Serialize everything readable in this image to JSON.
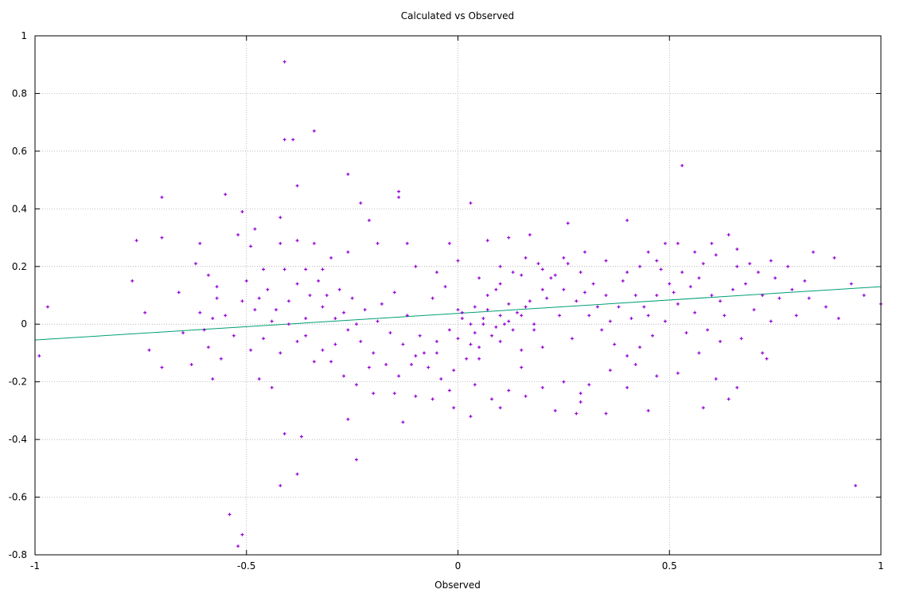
{
  "chart_data": {
    "type": "scatter",
    "title": "Calculated vs Observed",
    "xlabel": "Observed",
    "ylabel": "",
    "xlim": [
      -1,
      1
    ],
    "ylim": [
      -0.8,
      1
    ],
    "x_ticks": [
      -1,
      -0.5,
      0,
      0.5,
      1
    ],
    "x_tick_labels": [
      "-1",
      "-0.5",
      "0",
      "0.5",
      "1"
    ],
    "y_ticks": [
      -0.8,
      -0.6,
      -0.4,
      -0.2,
      0,
      0.2,
      0.4,
      0.6,
      0.8,
      1
    ],
    "y_tick_labels": [
      "-0.8",
      "-0.6",
      "-0.4",
      "-0.2",
      "0",
      "0.2",
      "0.4",
      "0.6",
      "0.8",
      "1"
    ],
    "grid": true,
    "legend": "none",
    "colors": {
      "points": "#9400d3",
      "fit_line": "#009e73"
    },
    "series": [
      {
        "kind": "scatter",
        "points": [
          [
            -0.99,
            -0.11
          ],
          [
            -0.97,
            0.06
          ],
          [
            -0.76,
            0.29
          ],
          [
            -0.77,
            0.15
          ],
          [
            -0.7,
            0.44
          ],
          [
            -0.7,
            0.3
          ],
          [
            -0.74,
            0.04
          ],
          [
            -0.73,
            -0.09
          ],
          [
            -0.7,
            -0.15
          ],
          [
            -0.66,
            0.11
          ],
          [
            -0.62,
            0.21
          ],
          [
            -0.61,
            0.28
          ],
          [
            -0.59,
            0.17
          ],
          [
            -0.57,
            0.13
          ],
          [
            -0.58,
            0.02
          ],
          [
            -0.6,
            -0.02
          ],
          [
            -0.58,
            -0.19
          ],
          [
            -0.55,
            0.45
          ],
          [
            -0.52,
            0.31
          ],
          [
            -0.51,
            0.39
          ],
          [
            -0.49,
            0.27
          ],
          [
            -0.48,
            0.33
          ],
          [
            -0.46,
            0.19
          ],
          [
            -0.47,
            0.09
          ],
          [
            -0.49,
            -0.09
          ],
          [
            -0.47,
            -0.19
          ],
          [
            -0.44,
            -0.22
          ],
          [
            -0.41,
            0.91
          ],
          [
            -0.41,
            0.64
          ],
          [
            -0.39,
            0.64
          ],
          [
            -0.38,
            0.48
          ],
          [
            -0.34,
            0.67
          ],
          [
            -0.26,
            0.52
          ],
          [
            -0.23,
            0.42
          ],
          [
            -0.21,
            0.36
          ],
          [
            -0.14,
            0.46
          ],
          [
            -0.14,
            0.44
          ],
          [
            -0.42,
            0.37
          ],
          [
            -0.42,
            0.28
          ],
          [
            -0.38,
            0.29
          ],
          [
            -0.34,
            0.28
          ],
          [
            0.03,
            0.42
          ],
          [
            0.53,
            0.55
          ],
          [
            -0.41,
            -0.38
          ],
          [
            -0.37,
            -0.39
          ],
          [
            -0.42,
            -0.56
          ],
          [
            -0.38,
            -0.52
          ],
          [
            -0.24,
            -0.47
          ],
          [
            -0.54,
            -0.66
          ],
          [
            -0.52,
            -0.77
          ],
          [
            -0.51,
            -0.73
          ],
          [
            0.94,
            -0.56
          ],
          [
            -0.26,
            -0.33
          ],
          [
            -0.13,
            -0.34
          ],
          [
            -0.01,
            -0.29
          ],
          [
            0.03,
            -0.32
          ],
          [
            0.1,
            -0.29
          ],
          [
            0.23,
            -0.3
          ],
          [
            0.28,
            -0.31
          ],
          [
            0.29,
            -0.27
          ],
          [
            0.35,
            -0.31
          ],
          [
            0.29,
            -0.24
          ],
          [
            0.4,
            -0.22
          ],
          [
            0.45,
            -0.3
          ],
          [
            0.58,
            -0.29
          ],
          [
            0.66,
            -0.22
          ],
          [
            0.64,
            -0.26
          ],
          [
            0.61,
            -0.19
          ],
          [
            0.72,
            -0.1
          ],
          [
            0.73,
            -0.12
          ],
          [
            0.84,
            0.25
          ],
          [
            0.89,
            0.23
          ],
          [
            0.93,
            0.14
          ],
          [
            0.96,
            0.1
          ],
          [
            1.0,
            0.07
          ],
          [
            0.9,
            0.02
          ],
          [
            0.82,
            0.15
          ],
          [
            0.78,
            0.2
          ],
          [
            0.76,
            0.09
          ],
          [
            0.74,
            0.01
          ],
          [
            0.64,
            0.31
          ],
          [
            0.6,
            0.28
          ],
          [
            0.56,
            0.25
          ],
          [
            0.52,
            0.28
          ],
          [
            0.49,
            0.28
          ],
          [
            0.47,
            0.22
          ],
          [
            0.43,
            0.2
          ],
          [
            0.4,
            0.36
          ],
          [
            0.26,
            0.35
          ],
          [
            0.17,
            0.31
          ],
          [
            0.12,
            0.3
          ],
          [
            0.07,
            0.29
          ],
          [
            -0.02,
            0.28
          ],
          [
            -0.12,
            0.28
          ],
          [
            -0.19,
            0.28
          ],
          [
            -0.26,
            0.25
          ],
          [
            -0.3,
            0.23
          ],
          [
            -0.32,
            0.19
          ],
          [
            -0.36,
            0.19
          ],
          [
            -0.41,
            0.19
          ],
          [
            -0.45,
            0.12
          ],
          [
            -0.43,
            0.05
          ],
          [
            -0.4,
            0.0
          ],
          [
            -0.36,
            -0.04
          ],
          [
            -0.32,
            -0.09
          ],
          [
            -0.3,
            -0.13
          ],
          [
            -0.27,
            -0.18
          ],
          [
            -0.24,
            -0.21
          ],
          [
            -0.2,
            -0.24
          ],
          [
            -0.15,
            -0.24
          ],
          [
            -0.1,
            -0.25
          ],
          [
            -0.06,
            -0.26
          ],
          [
            -0.02,
            -0.23
          ],
          [
            0.04,
            -0.21
          ],
          [
            0.08,
            -0.26
          ],
          [
            0.12,
            -0.23
          ],
          [
            0.16,
            -0.25
          ],
          [
            0.2,
            -0.22
          ],
          [
            0.25,
            -0.2
          ],
          [
            0.31,
            -0.21
          ],
          [
            0.36,
            -0.16
          ],
          [
            0.42,
            -0.14
          ],
          [
            0.47,
            -0.18
          ],
          [
            0.52,
            -0.17
          ],
          [
            0.57,
            -0.1
          ],
          [
            0.62,
            -0.06
          ],
          [
            0.67,
            -0.05
          ],
          [
            0.7,
            0.05
          ],
          [
            0.68,
            0.14
          ],
          [
            0.66,
            0.2
          ],
          [
            0.61,
            0.24
          ],
          [
            0.58,
            0.21
          ],
          [
            0.55,
            0.13
          ],
          [
            0.52,
            0.07
          ],
          [
            0.49,
            0.01
          ],
          [
            0.46,
            -0.04
          ],
          [
            0.43,
            -0.08
          ],
          [
            0.4,
            -0.11
          ],
          [
            0.37,
            -0.07
          ],
          [
            0.34,
            -0.02
          ],
          [
            0.31,
            0.03
          ],
          [
            0.28,
            0.08
          ],
          [
            0.25,
            0.12
          ],
          [
            0.22,
            0.16
          ],
          [
            0.19,
            0.21
          ],
          [
            0.16,
            0.23
          ],
          [
            0.13,
            0.18
          ],
          [
            0.1,
            0.14
          ],
          [
            0.07,
            0.1
          ],
          [
            0.04,
            0.06
          ],
          [
            0.01,
            0.02
          ],
          [
            -0.02,
            -0.02
          ],
          [
            -0.05,
            -0.06
          ],
          [
            -0.08,
            -0.1
          ],
          [
            -0.11,
            -0.14
          ],
          [
            -0.14,
            -0.18
          ],
          [
            -0.17,
            -0.14
          ],
          [
            -0.2,
            -0.1
          ],
          [
            -0.23,
            -0.06
          ],
          [
            -0.26,
            -0.02
          ],
          [
            -0.29,
            0.02
          ],
          [
            -0.32,
            0.06
          ],
          [
            -0.35,
            0.1
          ],
          [
            -0.38,
            0.14
          ],
          [
            -0.33,
            0.15
          ],
          [
            -0.28,
            0.12
          ],
          [
            -0.25,
            0.09
          ],
          [
            -0.22,
            0.05
          ],
          [
            -0.19,
            0.01
          ],
          [
            -0.16,
            -0.03
          ],
          [
            -0.13,
            -0.07
          ],
          [
            -0.1,
            -0.11
          ],
          [
            -0.07,
            -0.15
          ],
          [
            -0.04,
            -0.19
          ],
          [
            -0.01,
            -0.16
          ],
          [
            0.02,
            -0.12
          ],
          [
            0.05,
            -0.08
          ],
          [
            0.08,
            -0.04
          ],
          [
            0.11,
            0.0
          ],
          [
            0.14,
            0.04
          ],
          [
            0.17,
            0.08
          ],
          [
            0.2,
            0.12
          ],
          [
            0.23,
            0.17
          ],
          [
            0.26,
            0.21
          ],
          [
            0.29,
            0.18
          ],
          [
            0.32,
            0.14
          ],
          [
            0.35,
            0.1
          ],
          [
            0.38,
            0.06
          ],
          [
            0.41,
            0.02
          ],
          [
            0.44,
            0.06
          ],
          [
            0.47,
            0.1
          ],
          [
            0.5,
            0.14
          ],
          [
            0.53,
            0.18
          ],
          [
            0.56,
            0.04
          ],
          [
            0.59,
            -0.02
          ],
          [
            0.62,
            0.08
          ],
          [
            0.65,
            0.12
          ],
          [
            0.71,
            0.18
          ],
          [
            0.74,
            0.22
          ],
          [
            0.79,
            0.12
          ],
          [
            0.83,
            0.09
          ],
          [
            0.87,
            0.06
          ],
          [
            -0.55,
            0.03
          ],
          [
            -0.53,
            -0.04
          ],
          [
            -0.51,
            0.08
          ],
          [
            -0.5,
            0.15
          ],
          [
            -0.48,
            0.05
          ],
          [
            -0.46,
            -0.05
          ],
          [
            -0.44,
            0.01
          ],
          [
            -0.42,
            -0.1
          ],
          [
            -0.4,
            0.08
          ],
          [
            -0.38,
            -0.06
          ],
          [
            -0.36,
            0.02
          ],
          [
            -0.34,
            -0.13
          ],
          [
            -0.31,
            0.1
          ],
          [
            -0.29,
            -0.07
          ],
          [
            -0.27,
            0.04
          ],
          [
            -0.24,
            0.0
          ],
          [
            -0.21,
            -0.15
          ],
          [
            -0.18,
            0.07
          ],
          [
            -0.15,
            0.11
          ],
          [
            -0.12,
            0.03
          ],
          [
            -0.09,
            -0.04
          ],
          [
            -0.06,
            0.09
          ],
          [
            -0.03,
            0.13
          ],
          [
            0.0,
            0.05
          ],
          [
            0.03,
            -0.07
          ],
          [
            0.06,
            0.0
          ],
          [
            0.09,
            0.12
          ],
          [
            0.12,
            0.07
          ],
          [
            0.15,
            -0.09
          ],
          [
            0.18,
            -0.02
          ],
          [
            0.21,
            0.09
          ],
          [
            0.24,
            0.03
          ],
          [
            0.27,
            -0.05
          ],
          [
            0.3,
            0.11
          ],
          [
            0.33,
            0.06
          ],
          [
            0.36,
            0.01
          ],
          [
            0.39,
            0.15
          ],
          [
            0.42,
            0.1
          ],
          [
            0.45,
            0.03
          ],
          [
            0.48,
            0.19
          ],
          [
            0.51,
            0.11
          ],
          [
            0.54,
            -0.03
          ],
          [
            0.57,
            0.16
          ],
          [
            0.6,
            0.1
          ],
          [
            0.63,
            0.03
          ],
          [
            0.66,
            0.26
          ],
          [
            0.69,
            0.21
          ],
          [
            0.72,
            0.1
          ],
          [
            0.75,
            0.16
          ],
          [
            0.8,
            0.03
          ],
          [
            -0.65,
            -0.03
          ],
          [
            -0.63,
            -0.14
          ],
          [
            -0.61,
            0.04
          ],
          [
            -0.59,
            -0.08
          ],
          [
            -0.57,
            0.09
          ],
          [
            -0.56,
            -0.12
          ],
          [
            -0.1,
            0.2
          ],
          [
            -0.05,
            0.18
          ],
          [
            0.0,
            0.22
          ],
          [
            0.05,
            0.16
          ],
          [
            0.1,
            0.2
          ],
          [
            0.15,
            0.17
          ],
          [
            0.2,
            0.19
          ],
          [
            0.25,
            0.23
          ],
          [
            0.3,
            0.25
          ],
          [
            0.35,
            0.22
          ],
          [
            0.4,
            0.18
          ],
          [
            0.45,
            0.25
          ],
          [
            -0.05,
            -0.1
          ],
          [
            0.0,
            -0.05
          ],
          [
            0.05,
            -0.12
          ],
          [
            0.1,
            -0.06
          ],
          [
            0.15,
            -0.15
          ],
          [
            0.2,
            -0.08
          ],
          [
            0.03,
            0.0
          ],
          [
            0.06,
            0.02
          ],
          [
            0.09,
            -0.01
          ],
          [
            0.12,
            0.01
          ],
          [
            0.15,
            0.03
          ],
          [
            0.18,
            0.0
          ],
          [
            0.01,
            0.04
          ],
          [
            0.04,
            -0.03
          ],
          [
            0.07,
            0.05
          ],
          [
            0.1,
            0.03
          ],
          [
            0.13,
            -0.02
          ],
          [
            0.16,
            0.06
          ]
        ]
      },
      {
        "kind": "fit_line",
        "points": [
          [
            -1,
            -0.055
          ],
          [
            1,
            0.13
          ]
        ]
      }
    ]
  }
}
